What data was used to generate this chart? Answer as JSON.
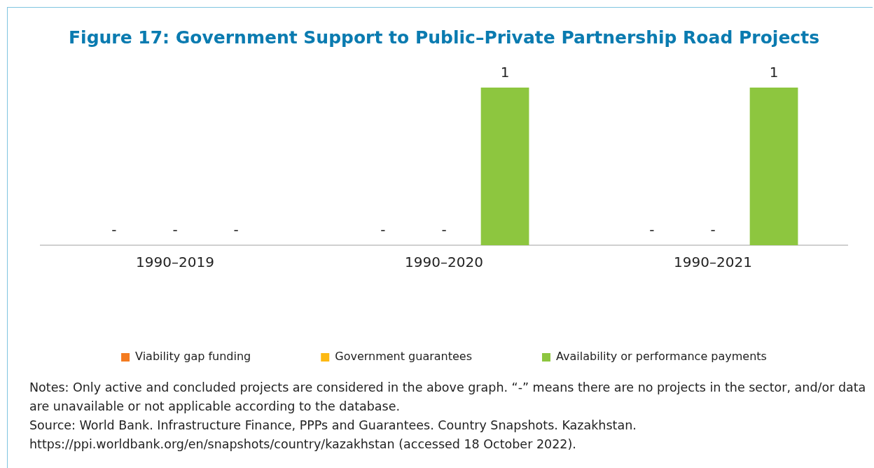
{
  "chart_data": {
    "type": "bar",
    "title": "Figure 17: Government Support to Public–Private Partnership Road Projects",
    "categories": [
      "1990–2019",
      "1990–2020",
      "1990–2021"
    ],
    "series": [
      {
        "name": "Viability gap funding",
        "color": "#f47b20",
        "values": [
          null,
          null,
          null
        ],
        "value_labels": [
          "-",
          "-",
          "-"
        ]
      },
      {
        "name": "Government guarantees",
        "color": "#fdb913",
        "values": [
          null,
          null,
          null
        ],
        "value_labels": [
          "-",
          "-",
          "-"
        ]
      },
      {
        "name": "Availability or performance payments",
        "color": "#8dc63f",
        "values": [
          null,
          1,
          1
        ],
        "value_labels": [
          "-",
          "1",
          "1"
        ]
      }
    ],
    "legend": "bottom",
    "grid": false,
    "annotations": [
      "Notes: Only active and concluded projects are considered in the above graph. “-” means there are no projects in the sector, and/or data are unavailable or not applicable according to the database.",
      "Source: World Bank. Infrastructure Finance, PPPs and Guarantees. Country Snapshots. Kazakhstan. https://ppi.worldbank.org/en/snapshots/country/kazakhstan (accessed 18 October 2022)."
    ]
  }
}
